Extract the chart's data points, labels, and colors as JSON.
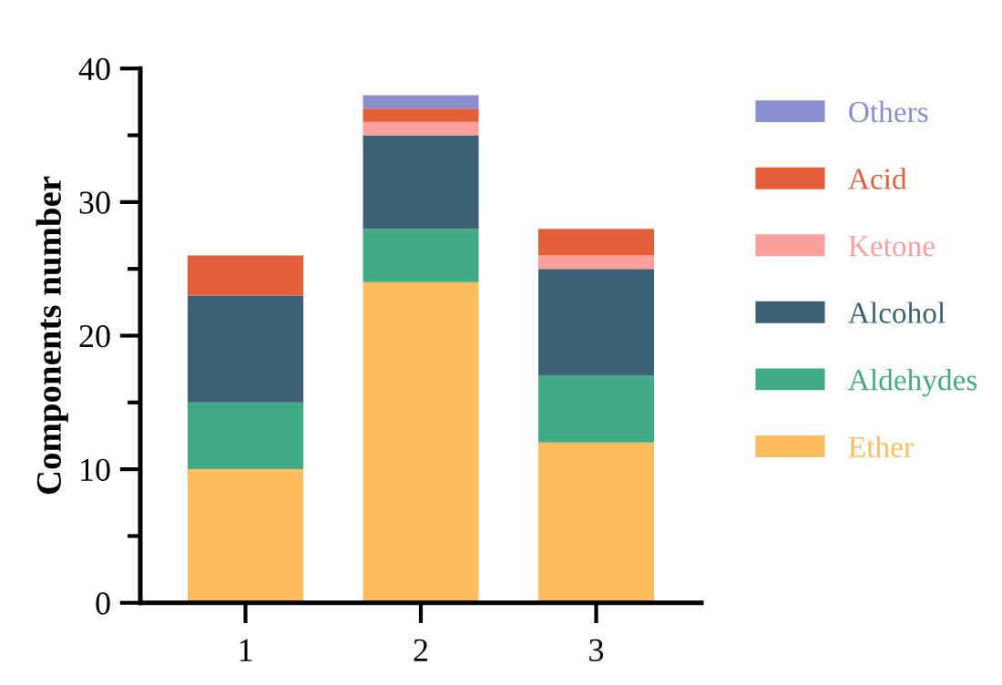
{
  "chart_data": {
    "type": "bar",
    "stacked": true,
    "ylabel": "Components number",
    "categories": [
      "1",
      "2",
      "3"
    ],
    "series": [
      {
        "name": "Ether",
        "color": "#fdbd5f",
        "values": [
          10,
          24,
          12
        ]
      },
      {
        "name": "Aldehydes",
        "color": "#41ab87",
        "values": [
          5,
          4,
          5
        ]
      },
      {
        "name": "Alcohol",
        "color": "#3d6174",
        "values": [
          8,
          7,
          8
        ]
      },
      {
        "name": "Ketone",
        "color": "#fe9e9d",
        "values": [
          0,
          1,
          1
        ]
      },
      {
        "name": "Acid",
        "color": "#e55e3a",
        "values": [
          3,
          1,
          2
        ]
      },
      {
        "name": "Others",
        "color": "#8b8fd0",
        "values": [
          0,
          1,
          0
        ]
      }
    ],
    "ylim": [
      0,
      40
    ],
    "yticks": [
      0,
      10,
      20,
      30,
      40
    ],
    "grid": false,
    "legend": "right"
  }
}
